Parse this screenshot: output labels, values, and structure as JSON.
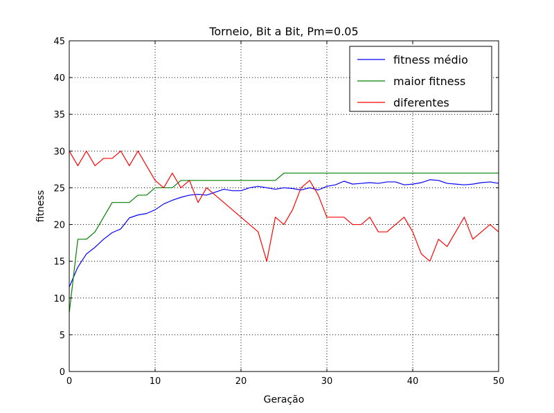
{
  "chart_data": {
    "type": "line",
    "title": "Torneio, Bit a Bit, Pm=0.05",
    "xlabel": "Geração",
    "ylabel": "fitness",
    "xlim": [
      0,
      50
    ],
    "ylim": [
      0,
      45
    ],
    "xticks": [
      0,
      10,
      20,
      30,
      40,
      50
    ],
    "yticks": [
      0,
      5,
      10,
      15,
      20,
      25,
      30,
      35,
      40,
      45
    ],
    "grid": true,
    "legend_position": "top-right",
    "x": [
      0,
      1,
      2,
      3,
      4,
      5,
      6,
      7,
      8,
      9,
      10,
      11,
      12,
      13,
      14,
      15,
      16,
      17,
      18,
      19,
      20,
      21,
      22,
      23,
      24,
      25,
      26,
      27,
      28,
      29,
      30,
      31,
      32,
      33,
      34,
      35,
      36,
      37,
      38,
      39,
      40,
      41,
      42,
      43,
      44,
      45,
      46,
      47,
      48,
      49,
      50
    ],
    "series": [
      {
        "name": "fitness médio",
        "color": "#0000ff",
        "values": [
          11.5,
          14.2,
          16.0,
          16.9,
          18.0,
          18.9,
          19.4,
          20.9,
          21.3,
          21.5,
          22.0,
          22.8,
          23.3,
          23.7,
          24.0,
          24.1,
          24.0,
          24.4,
          24.8,
          24.6,
          24.6,
          25.0,
          25.2,
          25.0,
          24.8,
          25.0,
          24.9,
          24.7,
          25.0,
          24.7,
          25.2,
          25.4,
          25.9,
          25.5,
          25.6,
          25.7,
          25.6,
          25.8,
          25.8,
          25.4,
          25.5,
          25.7,
          26.1,
          26.0,
          25.6,
          25.5,
          25.4,
          25.5,
          25.7,
          25.8,
          25.6
        ]
      },
      {
        "name": "maior fitness",
        "color": "#008000",
        "values": [
          8,
          18,
          18,
          19,
          21,
          23,
          23,
          23,
          24,
          24,
          25,
          25,
          25,
          26,
          26,
          26,
          26,
          26,
          26,
          26,
          26,
          26,
          26,
          26,
          26,
          27,
          27,
          27,
          27,
          27,
          27,
          27,
          27,
          27,
          27,
          27,
          27,
          27,
          27,
          27,
          27,
          27,
          27,
          27,
          27,
          27,
          27,
          27,
          27,
          27,
          27
        ]
      },
      {
        "name": "diferentes",
        "color": "#ff0000",
        "values": [
          30,
          28,
          30,
          28,
          29,
          29,
          30,
          28,
          30,
          28,
          26,
          25,
          27,
          25,
          26,
          23,
          25,
          24,
          23,
          22,
          21,
          20,
          19,
          15,
          21,
          20,
          22,
          25,
          26,
          24,
          21,
          21,
          21,
          20,
          20,
          21,
          19,
          19,
          20,
          21,
          19,
          16,
          15,
          18,
          17,
          19,
          21,
          18,
          19,
          20,
          19
        ]
      }
    ]
  }
}
